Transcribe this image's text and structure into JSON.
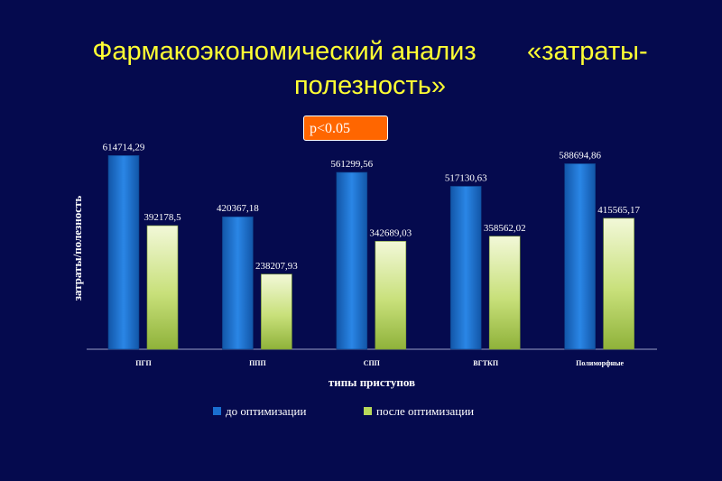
{
  "slide": {
    "title_line1": "Фармакоэкономический анализ       «затраты-",
    "title_line2": "полезность»",
    "badge": "p<0.05"
  },
  "chart_data": {
    "type": "bar",
    "categories": [
      "ПГП",
      "ППП",
      "СПП",
      "ВГТКП",
      "Полиморфные"
    ],
    "series": [
      {
        "name": "до оптимизации",
        "values": [
          614714.29,
          420367.18,
          561299.56,
          517130.63,
          588694.86
        ],
        "labels": [
          "614714,29",
          "420367,18",
          "561299,56",
          "517130,63",
          "588694,86"
        ],
        "color": "#1a6fd0"
      },
      {
        "name": "после оптимизации",
        "values": [
          392178.5,
          238207.93,
          342689.03,
          358562.02,
          415565.17
        ],
        "labels": [
          "392178,5",
          "238207,93",
          "342689,03",
          "358562,02",
          "415565,17"
        ],
        "color": "#b8d85a"
      }
    ],
    "xlabel": "типы приступов",
    "ylabel": "затраты/полезность",
    "ylim": [
      0,
      650000
    ],
    "grid": false,
    "legend_position": "bottom"
  }
}
